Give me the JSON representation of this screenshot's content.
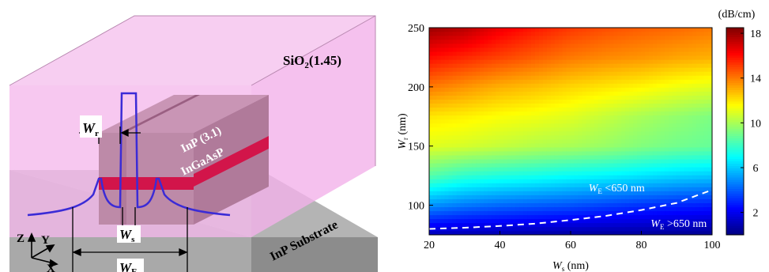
{
  "diagram": {
    "cladding_label": "SiO",
    "cladding_sub": "2",
    "cladding_index": "(1.45)",
    "rib_material": "InP (3.1)",
    "active_material": "InGaAsP",
    "substrate_label": "InP Substrate",
    "wr_label": "W",
    "wr_sub": "r",
    "ws_label": "W",
    "ws_sub": "s",
    "we_label": "W",
    "we_sub": "E",
    "axis_z": "Z",
    "axis_y": "Y",
    "axis_x": "X",
    "colors": {
      "cladding": "#f5b8ec",
      "rib": "#b07a9a",
      "active": "#d2154a",
      "substrate": "#a0a0a0",
      "mode_profile": "#3b2bd6"
    }
  },
  "chart_data": {
    "type": "heatmap",
    "title": "",
    "xlabel_main": "W",
    "xlabel_sub": "s",
    "xlabel_unit": " (nm)",
    "ylabel_main": "W",
    "ylabel_sub": "r",
    "ylabel_unit": " (nm)",
    "xlim": [
      20,
      100
    ],
    "ylim": [
      75,
      250
    ],
    "x_ticks": [
      "20",
      "40",
      "60",
      "80",
      "100"
    ],
    "y_ticks": [
      "100",
      "150",
      "200",
      "250"
    ],
    "colorbar": {
      "unit": "(dB/cm)",
      "range": [
        0,
        18.5
      ],
      "ticks": [
        "2",
        "6",
        "10",
        "14",
        "18"
      ],
      "colormap": "jet"
    },
    "z_grid": {
      "x": [
        20,
        30,
        40,
        50,
        60,
        70,
        80,
        90,
        100
      ],
      "y": [
        75,
        100,
        125,
        150,
        175,
        200,
        225,
        250
      ],
      "z": [
        [
          1,
          0.9,
          0.8,
          0.7,
          0.6,
          0.5,
          0.5,
          0.4,
          0.3
        ],
        [
          5,
          4.5,
          4.2,
          4.0,
          3.8,
          3.5,
          3.2,
          3.0,
          2.8
        ],
        [
          8.5,
          7.8,
          7.5,
          7.3,
          7.0,
          6.8,
          6.5,
          6.2,
          6.0
        ],
        [
          11,
          10.8,
          10.5,
          10.2,
          10.0,
          9.7,
          9.3,
          9.0,
          8.8
        ],
        [
          12,
          11.8,
          11.5,
          11.3,
          11.0,
          10.5,
          10.0,
          9.6,
          9.2
        ],
        [
          14,
          13.5,
          13,
          12.7,
          12.3,
          12.0,
          11.7,
          11.3,
          11.0
        ],
        [
          16,
          15.5,
          15,
          14.5,
          14.0,
          13.7,
          13.5,
          13.2,
          13.0
        ],
        [
          18,
          17.5,
          16.5,
          15.8,
          15.2,
          14.8,
          14.5,
          14.3,
          14.0
        ]
      ]
    },
    "boundary": {
      "x": [
        20,
        30,
        40,
        50,
        60,
        70,
        80,
        90,
        100
      ],
      "y": [
        80,
        81,
        82.5,
        84.5,
        87.5,
        91,
        96,
        102,
        113
      ],
      "style": "dashed",
      "color": "#ffffff"
    },
    "annotations": [
      {
        "main": "W",
        "sub": "E",
        "text": " <650 nm",
        "x": 70,
        "y": 115
      },
      {
        "main": "W",
        "sub": "E",
        "text": " >650 nm",
        "x": 88,
        "y": 85
      }
    ]
  }
}
